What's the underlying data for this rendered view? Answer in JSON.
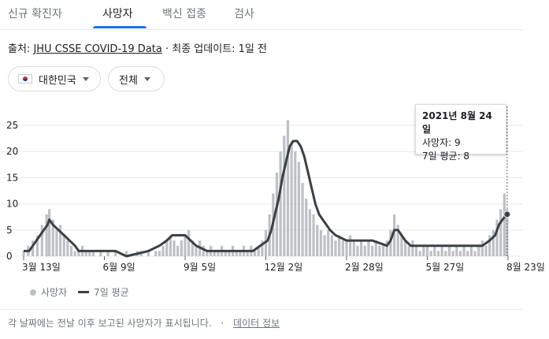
{
  "tabs": [
    "신규 확진자",
    "사망자",
    "백신 접종",
    "검사"
  ],
  "source": {
    "prefix": "출처: ",
    "link": "JHU CSSE COVID-19 Data",
    "suffix": " · 최종 업데이트: 1일 전"
  },
  "filters": {
    "country": "대한민국",
    "region": "전체"
  },
  "tooltip": {
    "date": "2021년 8월 24일",
    "deaths": "사망자: 9",
    "avg": "7일 평균: 8"
  },
  "legend": {
    "deaths": "사망자",
    "avg": "7일 평균"
  },
  "footer": {
    "note": "각 날짜에는 전날 이후 보고된 사망자가 표시됩니다.",
    "sep": "·",
    "link": "데이터 정보"
  },
  "colors": {
    "bars": "#bdc1c6",
    "line": "#3c4043",
    "grid": "#e8eaed",
    "tab_active": "#1a73e8"
  },
  "chart_data": {
    "type": "bar",
    "title": "",
    "xlabel": "",
    "ylabel": "",
    "ylim": [
      0,
      25
    ],
    "yticks": [
      0,
      5,
      10,
      15,
      20,
      25
    ],
    "xticks": [
      {
        "label": "3월 13일",
        "day": 0
      },
      {
        "label": "6월 9일",
        "day": 88
      },
      {
        "label": "9월 5일",
        "day": 176
      },
      {
        "label": "12월 2일",
        "day": 264
      },
      {
        "label": "2월 28일",
        "day": 352
      },
      {
        "label": "5월 27일",
        "day": 440
      },
      {
        "label": "8월 23일",
        "day": 528
      }
    ],
    "series": [
      {
        "name": "사망자",
        "type": "bar",
        "points": [
          [
            0,
            1
          ],
          [
            5,
            2
          ],
          [
            10,
            3
          ],
          [
            15,
            4
          ],
          [
            20,
            6
          ],
          [
            25,
            8
          ],
          [
            28,
            9
          ],
          [
            32,
            7
          ],
          [
            36,
            5
          ],
          [
            40,
            6
          ],
          [
            44,
            4
          ],
          [
            48,
            3
          ],
          [
            52,
            2
          ],
          [
            56,
            1
          ],
          [
            60,
            1
          ],
          [
            64,
            2
          ],
          [
            68,
            1
          ],
          [
            72,
            1
          ],
          [
            76,
            1
          ],
          [
            80,
            0
          ],
          [
            84,
            1
          ],
          [
            88,
            0
          ],
          [
            92,
            1
          ],
          [
            96,
            0
          ],
          [
            100,
            1
          ],
          [
            104,
            0
          ],
          [
            108,
            0
          ],
          [
            112,
            1
          ],
          [
            116,
            0
          ],
          [
            120,
            0
          ],
          [
            124,
            1
          ],
          [
            128,
            1
          ],
          [
            132,
            0
          ],
          [
            136,
            1
          ],
          [
            140,
            0
          ],
          [
            144,
            1
          ],
          [
            148,
            1
          ],
          [
            152,
            2
          ],
          [
            156,
            3
          ],
          [
            160,
            4
          ],
          [
            164,
            3
          ],
          [
            168,
            2
          ],
          [
            172,
            3
          ],
          [
            176,
            4
          ],
          [
            180,
            5
          ],
          [
            184,
            3
          ],
          [
            188,
            2
          ],
          [
            192,
            3
          ],
          [
            196,
            2
          ],
          [
            200,
            1
          ],
          [
            204,
            2
          ],
          [
            208,
            1
          ],
          [
            212,
            1
          ],
          [
            216,
            2
          ],
          [
            220,
            1
          ],
          [
            224,
            1
          ],
          [
            228,
            2
          ],
          [
            232,
            1
          ],
          [
            236,
            1
          ],
          [
            240,
            2
          ],
          [
            244,
            1
          ],
          [
            248,
            2
          ],
          [
            252,
            1
          ],
          [
            256,
            2
          ],
          [
            260,
            3
          ],
          [
            264,
            5
          ],
          [
            268,
            8
          ],
          [
            272,
            12
          ],
          [
            276,
            16
          ],
          [
            280,
            20
          ],
          [
            284,
            23
          ],
          [
            288,
            26
          ],
          [
            292,
            22
          ],
          [
            296,
            20
          ],
          [
            300,
            18
          ],
          [
            304,
            14
          ],
          [
            308,
            11
          ],
          [
            312,
            9
          ],
          [
            316,
            8
          ],
          [
            320,
            6
          ],
          [
            324,
            5
          ],
          [
            328,
            4
          ],
          [
            332,
            5
          ],
          [
            336,
            4
          ],
          [
            340,
            3
          ],
          [
            344,
            4
          ],
          [
            348,
            3
          ],
          [
            352,
            3
          ],
          [
            356,
            4
          ],
          [
            360,
            3
          ],
          [
            364,
            2
          ],
          [
            368,
            3
          ],
          [
            372,
            2
          ],
          [
            376,
            3
          ],
          [
            380,
            2
          ],
          [
            384,
            3
          ],
          [
            388,
            2
          ],
          [
            392,
            2
          ],
          [
            396,
            3
          ],
          [
            400,
            5
          ],
          [
            404,
            8
          ],
          [
            408,
            6
          ],
          [
            412,
            4
          ],
          [
            416,
            3
          ],
          [
            420,
            2
          ],
          [
            424,
            3
          ],
          [
            428,
            2
          ],
          [
            432,
            1
          ],
          [
            436,
            2
          ],
          [
            440,
            2
          ],
          [
            444,
            1
          ],
          [
            448,
            2
          ],
          [
            452,
            1
          ],
          [
            456,
            2
          ],
          [
            460,
            1
          ],
          [
            464,
            2
          ],
          [
            468,
            1
          ],
          [
            472,
            2
          ],
          [
            476,
            1
          ],
          [
            480,
            2
          ],
          [
            484,
            1
          ],
          [
            488,
            2
          ],
          [
            492,
            1
          ],
          [
            496,
            2
          ],
          [
            500,
            3
          ],
          [
            504,
            2
          ],
          [
            508,
            4
          ],
          [
            512,
            5
          ],
          [
            516,
            7
          ],
          [
            520,
            9
          ],
          [
            524,
            12
          ],
          [
            527,
            9
          ]
        ]
      },
      {
        "name": "7일 평균",
        "type": "line",
        "points": [
          [
            0,
            1
          ],
          [
            6,
            1
          ],
          [
            10,
            2
          ],
          [
            14,
            3
          ],
          [
            18,
            4
          ],
          [
            22,
            5
          ],
          [
            26,
            6
          ],
          [
            28,
            7
          ],
          [
            32,
            6
          ],
          [
            38,
            5
          ],
          [
            44,
            4
          ],
          [
            50,
            3
          ],
          [
            56,
            2
          ],
          [
            60,
            1
          ],
          [
            100,
            1
          ],
          [
            112,
            0
          ],
          [
            136,
            1
          ],
          [
            148,
            2
          ],
          [
            156,
            3
          ],
          [
            162,
            4
          ],
          [
            176,
            4
          ],
          [
            182,
            3
          ],
          [
            188,
            2
          ],
          [
            200,
            1
          ],
          [
            220,
            1
          ],
          [
            232,
            1
          ],
          [
            250,
            1
          ],
          [
            258,
            2
          ],
          [
            266,
            3
          ],
          [
            270,
            5
          ],
          [
            274,
            8
          ],
          [
            278,
            11
          ],
          [
            282,
            15
          ],
          [
            286,
            18
          ],
          [
            290,
            21
          ],
          [
            294,
            22
          ],
          [
            298,
            22
          ],
          [
            302,
            21
          ],
          [
            306,
            19
          ],
          [
            310,
            16
          ],
          [
            314,
            13
          ],
          [
            318,
            10
          ],
          [
            322,
            8
          ],
          [
            326,
            7
          ],
          [
            330,
            6
          ],
          [
            334,
            5
          ],
          [
            340,
            4
          ],
          [
            352,
            3
          ],
          [
            364,
            3
          ],
          [
            380,
            3
          ],
          [
            396,
            2
          ],
          [
            400,
            3
          ],
          [
            404,
            5
          ],
          [
            408,
            5
          ],
          [
            412,
            4
          ],
          [
            416,
            3
          ],
          [
            422,
            2
          ],
          [
            500,
            2
          ],
          [
            508,
            3
          ],
          [
            514,
            4
          ],
          [
            518,
            6
          ],
          [
            522,
            7
          ],
          [
            527,
            8
          ]
        ]
      }
    ]
  }
}
